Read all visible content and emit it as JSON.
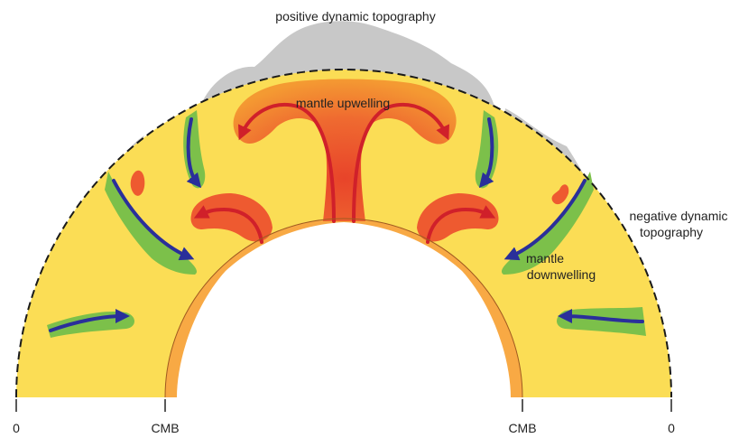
{
  "labels": {
    "positive_topography": "positive dynamic topography",
    "upwelling": "mantle upwelling",
    "negative_topography_line1": "negative dynamic",
    "negative_topography_line2": "topography",
    "downwelling_line1": "mantle",
    "downwelling_line2": "downwelling"
  },
  "axis": {
    "left_surface": "0",
    "left_cmb": "CMB",
    "right_cmb": "CMB",
    "right_surface": "0"
  },
  "colors": {
    "mantle": "#fbdd55",
    "upwelling_hot": "#ee5a30",
    "upwelling_warm": "#f7a030",
    "downwelling_cold": "#7cc04a",
    "topography": "#c8c8c8",
    "upwelling_arrow": "#d0202a",
    "downwelling_arrow": "#2a2f9a",
    "reference_surface": "#1a1a1a"
  }
}
